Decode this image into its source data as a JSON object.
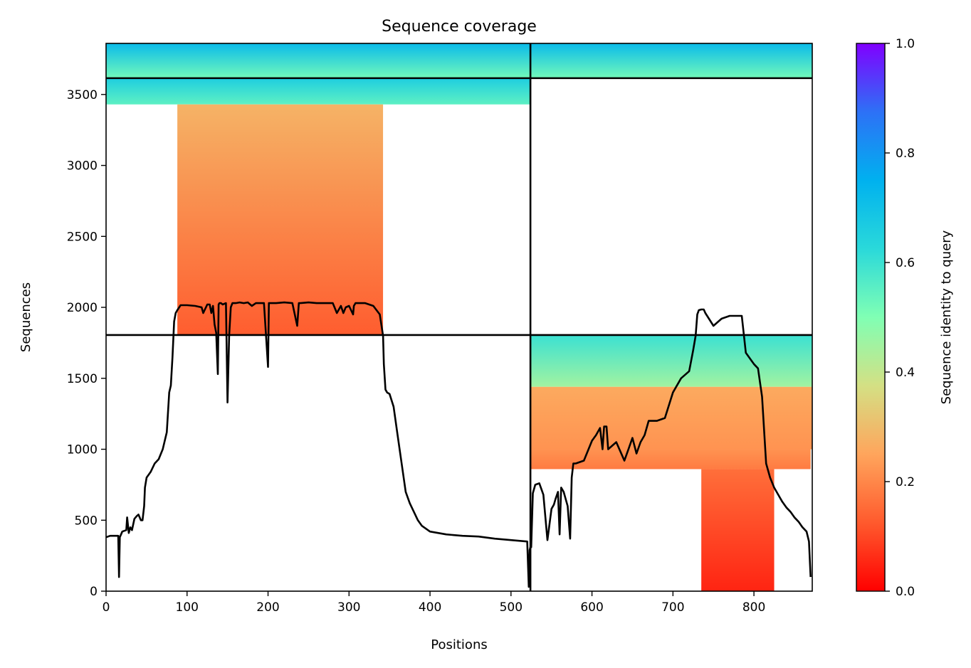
{
  "chart_data": {
    "type": "heatmap",
    "title": "Sequence coverage",
    "xlabel": "Positions",
    "ylabel": "Sequences",
    "xlim": [
      0,
      872
    ],
    "ylim": [
      0,
      3860
    ],
    "xticks": [
      0,
      100,
      200,
      300,
      400,
      500,
      600,
      700,
      800
    ],
    "yticks": [
      0,
      500,
      1000,
      1500,
      2000,
      2500,
      3000,
      3500
    ],
    "chain_boundary_x": 524,
    "block_boundaries_y": [
      1805,
      3615
    ],
    "colorbar": {
      "label": "Sequence identity to query",
      "range": [
        0,
        1
      ],
      "ticks": [
        0.0,
        0.2,
        0.4,
        0.6,
        0.8,
        1.0
      ],
      "tick_labels": [
        "0.0",
        "0.2",
        "0.4",
        "0.6",
        "0.8",
        "1.0"
      ],
      "colormap": "rainbow_r"
    },
    "coverage_blocks": [
      {
        "x_start": 0,
        "x_end": 524,
        "y_start": 3615,
        "y_end": 3860,
        "identity_top": 0.72,
        "identity_bottom": 0.52
      },
      {
        "x_start": 524,
        "x_end": 872,
        "y_start": 3615,
        "y_end": 3860,
        "identity_top": 0.72,
        "identity_bottom": 0.52
      },
      {
        "x_start": 0,
        "x_end": 524,
        "y_start": 3430,
        "y_end": 3615,
        "identity_top": 0.66,
        "identity_bottom": 0.55
      },
      {
        "x_start": 88,
        "x_end": 342,
        "y_start": 1805,
        "y_end": 3430,
        "identity_top": 0.28,
        "identity_bottom": 0.13
      },
      {
        "x_start": 524,
        "x_end": 872,
        "y_start": 1440,
        "y_end": 1805,
        "identity_top": 0.6,
        "identity_bottom": 0.45
      },
      {
        "x_start": 524,
        "x_end": 872,
        "y_start": 1000,
        "y_end": 1440,
        "identity_top": 0.26,
        "identity_bottom": 0.22
      },
      {
        "x_start": 524,
        "x_end": 870,
        "y_start": 860,
        "y_end": 1000,
        "identity_top": 0.22,
        "identity_bottom": 0.18
      },
      {
        "x_start": 735,
        "x_end": 825,
        "y_start": 0,
        "y_end": 860,
        "identity_top": 0.16,
        "identity_bottom": 0.05
      }
    ],
    "coverage_line": {
      "x": [
        0,
        5,
        15,
        16,
        17,
        20,
        25,
        26,
        28,
        30,
        32,
        35,
        38,
        40,
        43,
        45,
        47,
        48,
        50,
        55,
        60,
        65,
        70,
        75,
        78,
        80,
        82,
        84,
        86,
        88,
        92,
        100,
        110,
        118,
        120,
        125,
        128,
        130,
        132,
        134,
        136,
        138,
        139,
        140,
        142,
        144,
        148,
        150,
        152,
        154,
        156,
        158,
        160,
        165,
        170,
        175,
        180,
        185,
        190,
        195,
        200,
        201,
        202,
        204,
        210,
        220,
        230,
        236,
        238,
        240,
        250,
        260,
        270,
        280,
        285,
        290,
        293,
        296,
        300,
        305,
        306,
        308,
        312,
        320,
        330,
        338,
        342,
        343,
        345,
        347,
        350,
        355,
        360,
        365,
        370,
        375,
        380,
        385,
        390,
        400,
        420,
        440,
        460,
        480,
        500,
        520,
        522,
        523,
        524,
        525,
        527,
        530,
        535,
        540,
        545,
        550,
        553,
        555,
        558,
        560,
        562,
        565,
        570,
        573,
        575,
        577,
        580,
        585,
        590,
        600,
        605,
        610,
        613,
        615,
        618,
        620,
        630,
        640,
        645,
        650,
        655,
        660,
        665,
        670,
        680,
        690,
        700,
        710,
        720,
        725,
        728,
        730,
        732,
        735,
        738,
        740,
        750,
        760,
        770,
        780,
        785,
        790,
        800,
        805,
        810,
        815,
        820,
        825,
        830,
        835,
        840,
        845,
        850,
        855,
        860,
        865,
        868,
        870,
        872
      ],
      "y": [
        380,
        390,
        390,
        100,
        380,
        420,
        430,
        520,
        410,
        450,
        430,
        510,
        530,
        540,
        500,
        500,
        600,
        730,
        800,
        840,
        900,
        930,
        1000,
        1120,
        1400,
        1450,
        1650,
        1900,
        1960,
        1980,
        2015,
        2015,
        2010,
        2000,
        1960,
        2020,
        2020,
        1960,
        2010,
        1880,
        1820,
        1530,
        2020,
        2030,
        2030,
        2020,
        2030,
        1330,
        1800,
        2000,
        2030,
        2030,
        2030,
        2035,
        2030,
        2035,
        2010,
        2030,
        2030,
        2030,
        1580,
        2030,
        2030,
        2030,
        2030,
        2035,
        2030,
        1870,
        2030,
        2030,
        2035,
        2030,
        2030,
        2030,
        1960,
        2010,
        1960,
        2000,
        2010,
        1950,
        2010,
        2030,
        2030,
        2030,
        2010,
        1950,
        1800,
        1600,
        1420,
        1400,
        1390,
        1300,
        1100,
        900,
        700,
        620,
        560,
        500,
        460,
        420,
        400,
        390,
        385,
        370,
        360,
        350,
        30,
        290,
        310,
        310,
        690,
        750,
        760,
        680,
        360,
        580,
        610,
        650,
        700,
        400,
        730,
        700,
        600,
        370,
        800,
        900,
        900,
        910,
        920,
        1060,
        1100,
        1150,
        1000,
        1160,
        1160,
        1000,
        1050,
        920,
        1000,
        1080,
        970,
        1050,
        1100,
        1200,
        1200,
        1220,
        1400,
        1500,
        1550,
        1700,
        1800,
        1950,
        1980,
        1985,
        1985,
        1960,
        1870,
        1920,
        1940,
        1940,
        1940,
        1680,
        1600,
        1570,
        1370,
        900,
        800,
        730,
        680,
        630,
        590,
        560,
        520,
        490,
        450,
        420,
        350,
        100
      ]
    }
  }
}
